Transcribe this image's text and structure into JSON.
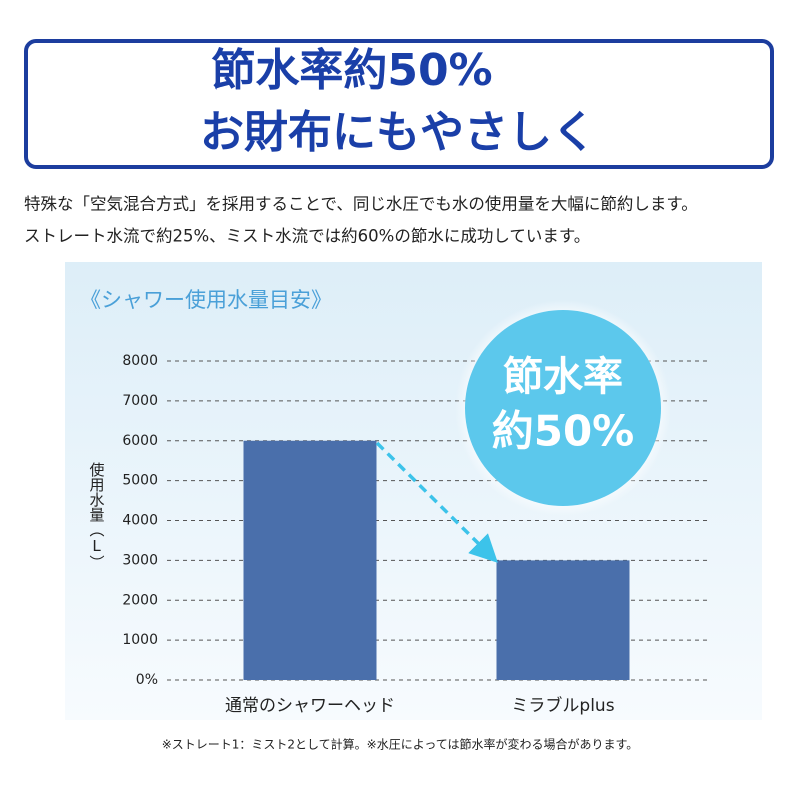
{
  "header": {
    "line1": "節水率約50%",
    "line2": "お財布にもやさしく"
  },
  "description": [
    "特殊な「空気混合方式」を採用することで、同じ水圧でも水の使用量を大幅に節約します。",
    "ストレート水流で約25%、ミスト水流では約60%の節水に成功しています。"
  ],
  "chart_data": {
    "type": "bar",
    "title": "《シャワー使用水量目安》",
    "y_label": "使用水量（L）",
    "categories": [
      "通常のシャワーヘッド",
      "ミラブルplus"
    ],
    "values": [
      6000,
      3000
    ],
    "color": "#4a6fab",
    "ylim": [
      0,
      8000
    ],
    "yticks": [
      {
        "value": 0,
        "label": "0%"
      },
      1000,
      2000,
      3000,
      4000,
      5000,
      6000,
      7000,
      8000
    ],
    "grid": true,
    "badge": [
      "節水率",
      "約50%"
    ],
    "footnote": "※ストレート1：ミスト2として計算。※水圧によっては節水率が変わる場合があります。"
  }
}
